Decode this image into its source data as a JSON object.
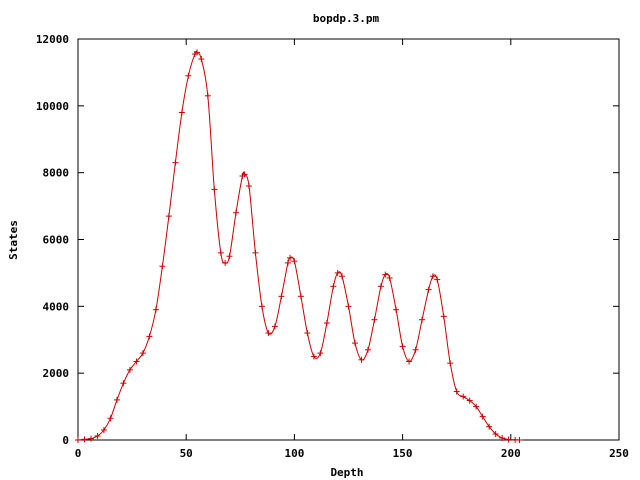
{
  "chart_data": {
    "type": "line",
    "title": "bopdp.3.pm",
    "xlabel": "Depth",
    "ylabel": "States",
    "xlim": [
      0,
      250
    ],
    "ylim": [
      0,
      12000
    ],
    "x_ticks": [
      0,
      50,
      100,
      150,
      200,
      250
    ],
    "y_ticks": [
      0,
      2000,
      4000,
      6000,
      8000,
      10000,
      12000
    ],
    "grid": false,
    "legend": "none",
    "marker": "plus",
    "color": "#cc0000",
    "series": [
      {
        "x": [
          0,
          3,
          6,
          9,
          12,
          15,
          18,
          21,
          24,
          27,
          30,
          33,
          36,
          39,
          42,
          45,
          48,
          51,
          54,
          55,
          57,
          60,
          63,
          66,
          68,
          70,
          73,
          76,
          77,
          79,
          82,
          85,
          88,
          91,
          94,
          97,
          98,
          100,
          103,
          106,
          109,
          112,
          115,
          118,
          120,
          122,
          125,
          128,
          131,
          134,
          137,
          140,
          142,
          144,
          147,
          150,
          153,
          156,
          159,
          162,
          164,
          166,
          169,
          172,
          175,
          178,
          181,
          184,
          187,
          190,
          193,
          196,
          199,
          202,
          204
        ],
        "y": [
          0,
          20,
          40,
          120,
          300,
          650,
          1200,
          1700,
          2100,
          2350,
          2600,
          3100,
          3900,
          5200,
          6700,
          8300,
          9800,
          10900,
          11550,
          11600,
          11400,
          10300,
          7500,
          5600,
          5300,
          5500,
          6800,
          7900,
          7950,
          7600,
          5600,
          4000,
          3200,
          3400,
          4300,
          5300,
          5450,
          5350,
          4300,
          3200,
          2500,
          2600,
          3500,
          4600,
          5000,
          4900,
          4000,
          2900,
          2400,
          2700,
          3600,
          4600,
          4950,
          4850,
          3900,
          2800,
          2350,
          2700,
          3600,
          4500,
          4900,
          4800,
          3700,
          2300,
          1450,
          1300,
          1180,
          1000,
          700,
          400,
          180,
          60,
          15,
          5,
          0
        ]
      }
    ]
  }
}
